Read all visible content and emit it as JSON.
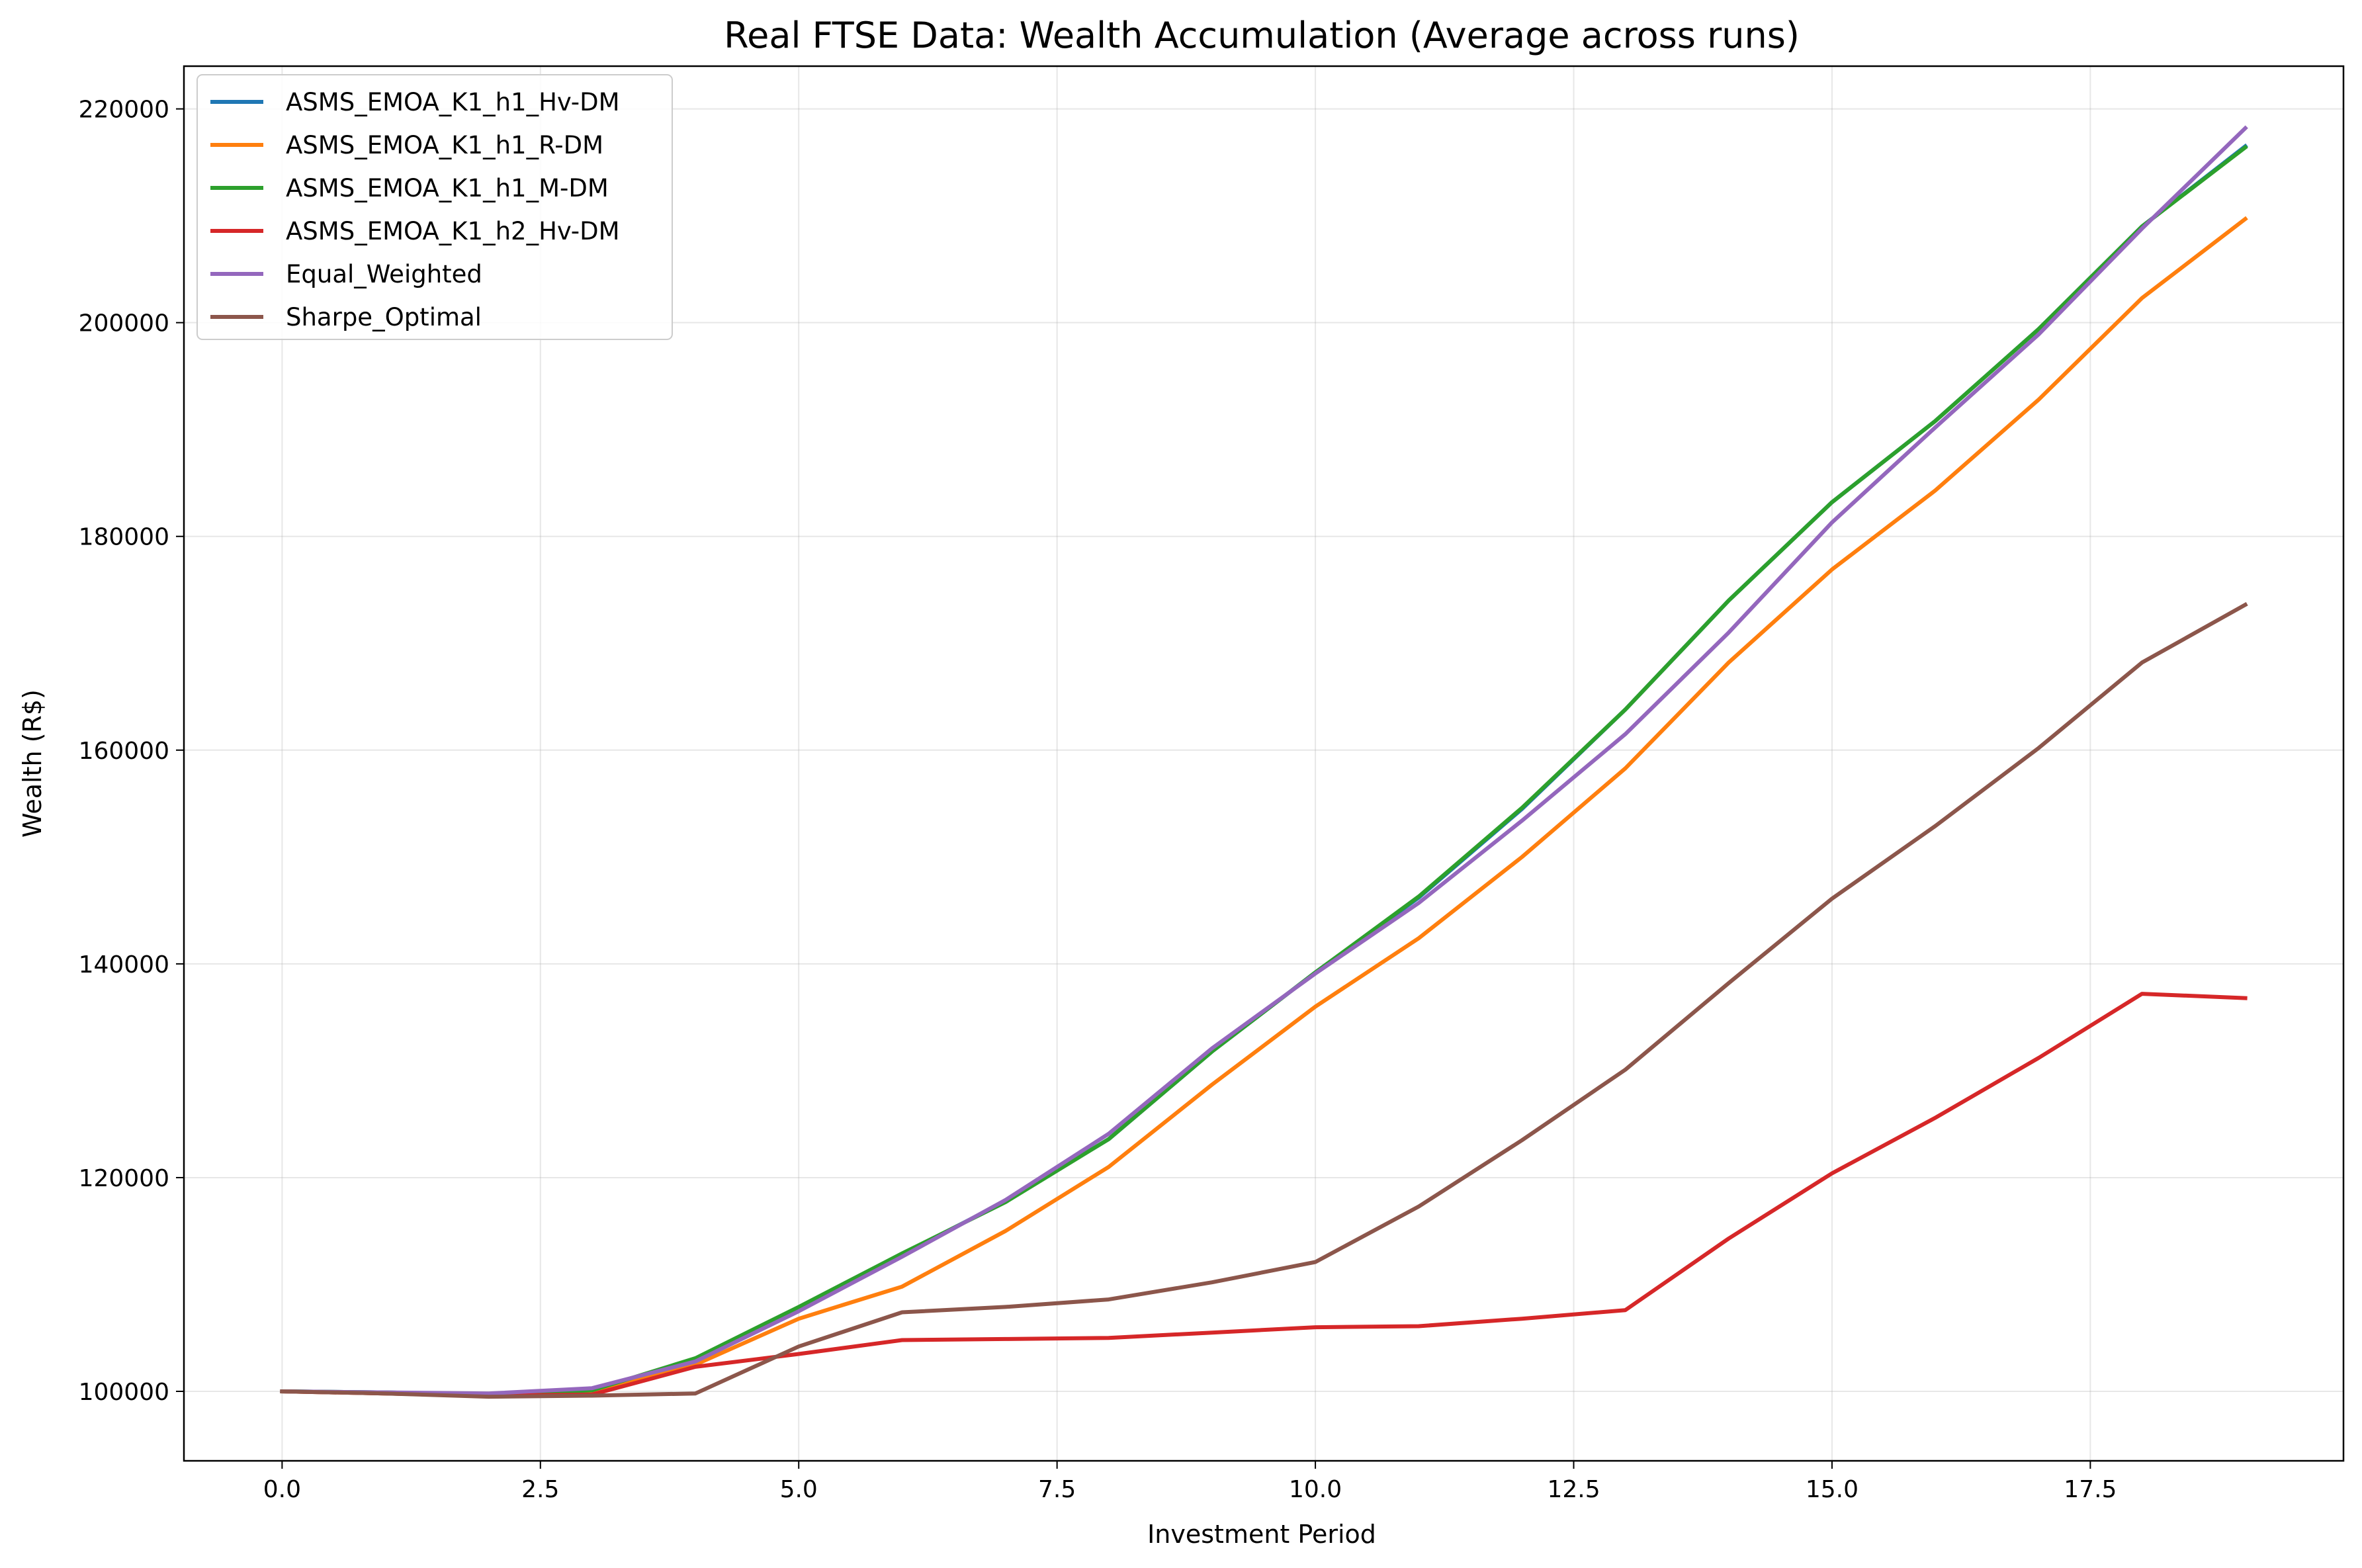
{
  "chart_data": {
    "type": "line",
    "title": "Real FTSE Data: Wealth Accumulation (Average across runs)",
    "xlabel": "Investment Period",
    "ylabel": "Wealth (R$)",
    "xlim": [
      -0.95,
      19.95
    ],
    "ylim": [
      93500,
      224000
    ],
    "x_ticks": [
      0.0,
      2.5,
      5.0,
      7.5,
      10.0,
      12.5,
      15.0,
      17.5
    ],
    "x_tick_labels": [
      "0.0",
      "2.5",
      "5.0",
      "7.5",
      "10.0",
      "12.5",
      "15.0",
      "17.5"
    ],
    "y_ticks": [
      100000,
      120000,
      140000,
      160000,
      180000,
      200000,
      220000
    ],
    "y_tick_labels": [
      "100000",
      "120000",
      "140000",
      "160000",
      "180000",
      "200000",
      "220000"
    ],
    "grid": true,
    "legend_position": "upper-left",
    "x": [
      0,
      1,
      2,
      3,
      4,
      5,
      6,
      7,
      8,
      9,
      10,
      11,
      12,
      13,
      14,
      15,
      16,
      17,
      18,
      19
    ],
    "series": [
      {
        "name": "ASMS_EMOA_K1_h1_Hv-DM",
        "color": "#1f77b4",
        "values": [
          100000,
          99900,
          99700,
          100100,
          103000,
          107800,
          112800,
          117800,
          123600,
          131800,
          139200,
          146200,
          154500,
          163800,
          174000,
          183200,
          190800,
          199400,
          209000,
          216500
        ]
      },
      {
        "name": "ASMS_EMOA_K1_h1_R-DM",
        "color": "#ff7f0e",
        "values": [
          100000,
          99800,
          99600,
          99900,
          102500,
          106800,
          109800,
          115000,
          121000,
          128700,
          136000,
          142400,
          150000,
          158300,
          168200,
          176900,
          184300,
          192800,
          202300,
          209700
        ]
      },
      {
        "name": "ASMS_EMOA_K1_h1_M-DM",
        "color": "#2ca02c",
        "values": [
          100000,
          99900,
          99700,
          100100,
          103100,
          107900,
          112900,
          117700,
          123600,
          131800,
          139200,
          146300,
          154600,
          163800,
          174000,
          183200,
          190800,
          199400,
          209000,
          216400
        ]
      },
      {
        "name": "ASMS_EMOA_K1_h2_Hv-DM",
        "color": "#d62728",
        "values": [
          100000,
          99800,
          99600,
          99700,
          102300,
          103500,
          104800,
          104900,
          105000,
          105500,
          106000,
          106100,
          106800,
          107600,
          114300,
          120400,
          125600,
          131200,
          137200,
          136800
        ]
      },
      {
        "name": "Equal_Weighted",
        "color": "#9467bd",
        "values": [
          100000,
          99900,
          99800,
          100300,
          102800,
          107500,
          112600,
          117900,
          124100,
          132100,
          139100,
          145700,
          153400,
          161500,
          171000,
          181300,
          190200,
          198900,
          208800,
          218200
        ]
      },
      {
        "name": "Sharpe_Optimal",
        "color": "#8c564b",
        "values": [
          100000,
          99800,
          99500,
          99600,
          99800,
          104200,
          107400,
          107900,
          108600,
          110200,
          112100,
          117300,
          123500,
          130100,
          138200,
          146100,
          152900,
          160200,
          168200,
          173600
        ]
      }
    ]
  }
}
